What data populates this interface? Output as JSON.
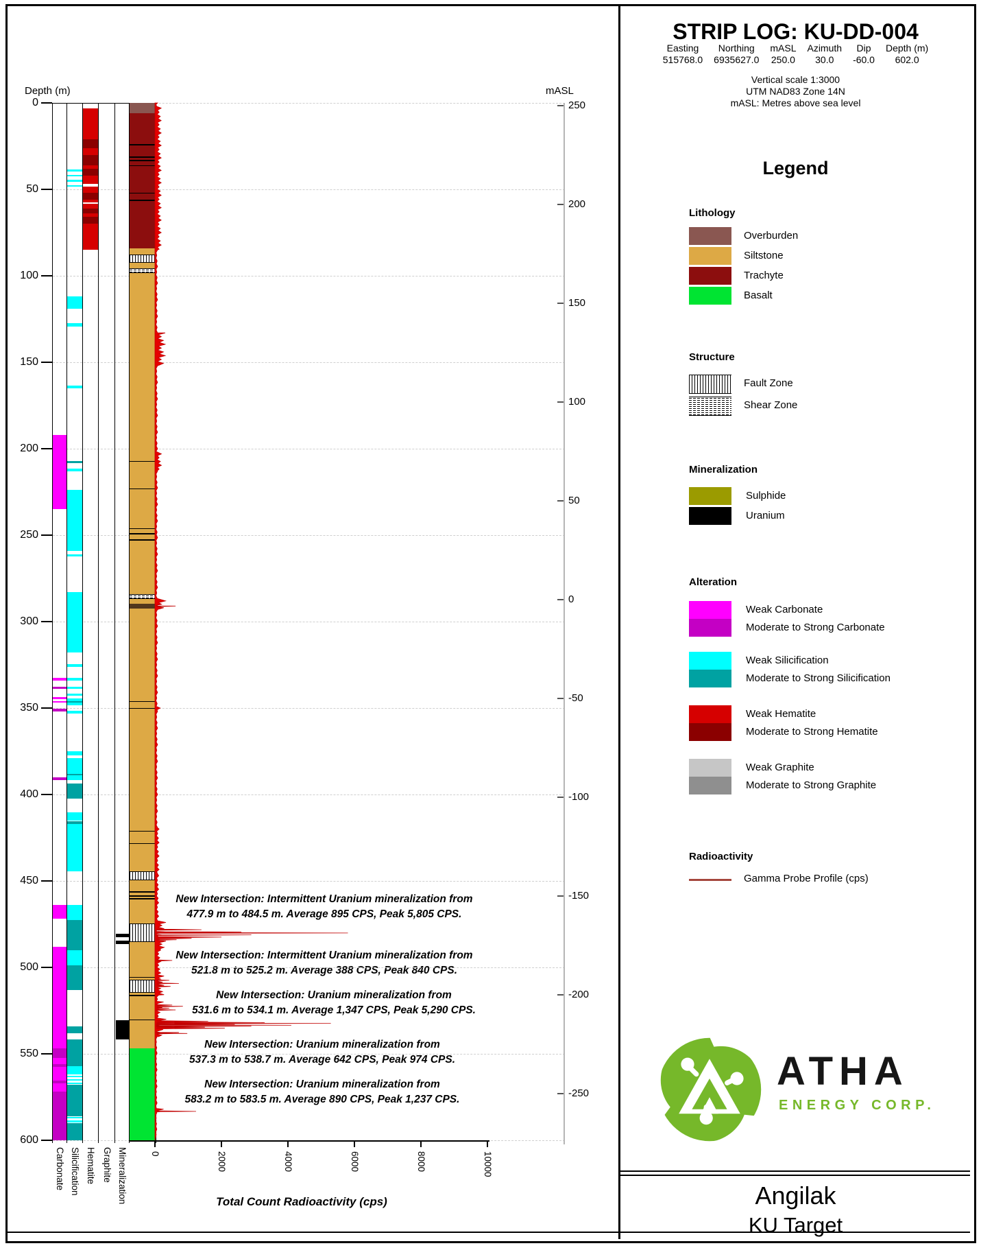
{
  "page": {
    "depth_label": "Depth (m)",
    "masl_label": "mASL"
  },
  "header": {
    "title": "STRIP LOG: KU-DD-004",
    "fields": [
      {
        "label": "Easting",
        "value": "515768.0"
      },
      {
        "label": "Northing",
        "value": "6935627.0"
      },
      {
        "label": "mASL",
        "value": "250.0"
      },
      {
        "label": "Azimuth",
        "value": "30.0"
      },
      {
        "label": "Dip",
        "value": "-60.0"
      },
      {
        "label": "Depth (m)",
        "value": "602.0"
      }
    ],
    "scale_note": "Vertical scale 1:3000",
    "datum_note": "UTM NAD83 Zone 14N",
    "masl_note": "mASL: Metres above sea level"
  },
  "palette": {
    "overburden": "#8a5751",
    "siltstone": "#dda945",
    "trachyte": "#8c0e0e",
    "basalt": "#00e432",
    "weak_carbonate": "#ff00ff",
    "strong_carbonate": "#c400c4",
    "weak_silicification": "#00ffff",
    "strong_silicification": "#00a2a2",
    "weak_hematite": "#d60000",
    "strong_hematite": "#8b0000",
    "weak_graphite": "#c6c6c6",
    "strong_graphite": "#8f8f8f",
    "sulphide": "#9b9b00",
    "uranium": "#000000",
    "gamma": "#e60000",
    "gamma_line": "#a5473d",
    "brand_green": "#76b82a",
    "dark_band": "#53381d"
  },
  "legend": {
    "title": "Legend",
    "lithology": {
      "heading": "Lithology",
      "items": [
        {
          "label": "Overburden",
          "key": "overburden"
        },
        {
          "label": "Siltstone",
          "key": "siltstone"
        },
        {
          "label": "Trachyte",
          "key": "trachyte"
        },
        {
          "label": "Basalt",
          "key": "basalt"
        }
      ]
    },
    "structure": {
      "heading": "Structure",
      "items": [
        {
          "label": "Fault Zone",
          "pattern": "fault"
        },
        {
          "label": "Shear Zone",
          "pattern": "shear"
        }
      ]
    },
    "mineralization": {
      "heading": "Mineralization",
      "items": [
        {
          "label": "Sulphide",
          "key": "sulphide"
        },
        {
          "label": "Uranium",
          "key": "uranium"
        }
      ]
    },
    "alteration": {
      "heading": "Alteration",
      "groups": [
        {
          "weak_label": "Weak Carbonate",
          "strong_label": "Moderate to Strong Carbonate",
          "weak_key": "weak_carbonate",
          "strong_key": "strong_carbonate"
        },
        {
          "weak_label": "Weak Silicification",
          "strong_label": "Moderate to Strong Silicification",
          "weak_key": "weak_silicification",
          "strong_key": "strong_silicification"
        },
        {
          "weak_label": "Weak Hematite",
          "strong_label": "Moderate to Strong Hematite",
          "weak_key": "weak_hematite",
          "strong_key": "strong_hematite"
        },
        {
          "weak_label": "Weak Graphite",
          "strong_label": "Moderate to Strong Graphite",
          "weak_key": "weak_graphite",
          "strong_key": "strong_graphite"
        }
      ]
    },
    "radioactivity": {
      "heading": "Radioactivity",
      "item": "Gamma Probe Profile (cps)"
    }
  },
  "chart_data": {
    "type": "strip-log",
    "title": "STRIP LOG: KU-DD-004",
    "depth_axis": {
      "label": "Depth (m)",
      "min": 0,
      "max": 600,
      "tick_interval": 50
    },
    "masl_axis": {
      "label": "mASL",
      "ticks": [
        250,
        200,
        150,
        100,
        50,
        0,
        -50,
        -100,
        -150,
        -200,
        -250
      ]
    },
    "radioactivity_axis": {
      "label": "Total Count Radioactivity (cps)",
      "min": 0,
      "max": 10000,
      "ticks": [
        0,
        2000,
        4000,
        6000,
        8000,
        10000
      ]
    },
    "track_labels": [
      "Carbonate",
      "Silicification",
      "Hematite",
      "Graphite",
      "Mineralization"
    ],
    "lithology_intervals": [
      {
        "unit": "Overburden",
        "key": "overburden",
        "from": 0,
        "to": 6
      },
      {
        "unit": "Trachyte",
        "key": "trachyte",
        "from": 6,
        "to": 84
      },
      {
        "unit": "Siltstone",
        "key": "siltstone",
        "from": 84,
        "to": 547
      },
      {
        "unit": "Basalt",
        "key": "basalt",
        "from": 547,
        "to": 600
      }
    ],
    "lithology_contacts": [
      24,
      31,
      33,
      36,
      52,
      56,
      207,
      223,
      246,
      249,
      252.5,
      346,
      350,
      421,
      428,
      456,
      458.5,
      460,
      505.5,
      516,
      530
    ],
    "lithology_dark_band": {
      "from": 289.5,
      "to": 292.5
    },
    "structures": [
      {
        "type": "fault",
        "from": 87.5,
        "to": 91.5
      },
      {
        "type": "shear",
        "from": 95.5,
        "to": 97.5
      },
      {
        "type": "shear",
        "from": 284,
        "to": 286
      },
      {
        "type": "fault",
        "from": 444.5,
        "to": 449
      },
      {
        "type": "fault",
        "from": 474.5,
        "to": 484.5
      },
      {
        "type": "fault",
        "from": 507,
        "to": 514
      }
    ],
    "alteration_intervals": {
      "carbonate": {
        "weak": [
          [
            192,
            235
          ],
          [
            332.5,
            334
          ],
          [
            343.5,
            345
          ],
          [
            346,
            347
          ],
          [
            464,
            472
          ],
          [
            488,
            547
          ],
          [
            552.5,
            556
          ],
          [
            557.5,
            565.5
          ],
          [
            567,
            572
          ]
        ],
        "strong": [
          [
            337.5,
            339
          ],
          [
            350.5,
            352
          ],
          [
            390,
            391.5
          ],
          [
            547,
            552.5
          ],
          [
            556,
            557.5
          ],
          [
            565.5,
            567
          ],
          [
            572,
            600
          ]
        ]
      },
      "silicification": {
        "weak": [
          [
            38.5,
            39.5
          ],
          [
            41.5,
            42.5
          ],
          [
            44.5,
            45.5
          ],
          [
            47.5,
            48.5
          ],
          [
            112,
            119
          ],
          [
            127.5,
            129.5
          ],
          [
            163.5,
            165
          ],
          [
            211.5,
            213
          ],
          [
            224,
            259
          ],
          [
            261,
            262.5
          ],
          [
            283,
            318
          ],
          [
            324.5,
            326
          ],
          [
            332.5,
            334
          ],
          [
            337.5,
            339
          ],
          [
            341.5,
            343
          ],
          [
            344.5,
            346
          ],
          [
            347,
            348.5
          ],
          [
            351.5,
            353
          ],
          [
            375,
            377.5
          ],
          [
            379,
            388
          ],
          [
            389,
            391.5
          ],
          [
            410.5,
            415
          ],
          [
            417,
            444.5
          ],
          [
            464,
            472.5
          ],
          [
            490,
            499
          ],
          [
            557,
            562
          ],
          [
            562.5,
            563.5
          ],
          [
            564.5,
            565.5
          ],
          [
            566.5,
            567.5
          ],
          [
            586.5,
            587.5
          ],
          [
            588.5,
            589.5
          ]
        ],
        "strong": [
          [
            207,
            208.5
          ],
          [
            346,
            347
          ],
          [
            388,
            389
          ],
          [
            393.5,
            402.5
          ],
          [
            415.5,
            417
          ],
          [
            472.5,
            490
          ],
          [
            499,
            513
          ],
          [
            534,
            538
          ],
          [
            541.5,
            557
          ],
          [
            568,
            586
          ],
          [
            590,
            600
          ]
        ]
      },
      "hematite": {
        "weak": [
          [
            3,
            21
          ],
          [
            26,
            30
          ],
          [
            36,
            38
          ],
          [
            42,
            47
          ],
          [
            48.5,
            52
          ],
          [
            56,
            57.5
          ],
          [
            58.5,
            61
          ],
          [
            64,
            66
          ],
          [
            70,
            85
          ]
        ],
        "strong": [
          [
            21,
            26
          ],
          [
            30,
            36
          ],
          [
            38,
            42
          ],
          [
            52,
            56
          ],
          [
            61,
            64
          ],
          [
            66,
            70
          ]
        ]
      },
      "graphite": {
        "weak": [],
        "strong": []
      }
    },
    "mineralization_intervals": [
      {
        "mineral": "uranium",
        "from": 480.5,
        "to": 482.5
      },
      {
        "mineral": "uranium",
        "from": 484.5,
        "to": 486.5
      },
      {
        "mineral": "uranium",
        "from": 530.5,
        "to": 541.5
      }
    ],
    "gamma_profile": {
      "units": "cps",
      "noise_segments": [
        [
          0,
          3,
          20,
          60,
          1
        ],
        [
          3,
          85,
          50,
          140,
          1.2
        ],
        [
          85,
          133,
          25,
          55,
          1.6
        ],
        [
          133,
          152,
          50,
          260,
          1.1
        ],
        [
          152,
          203,
          25,
          55,
          1.6
        ],
        [
          203,
          213,
          45,
          150,
          1.1
        ],
        [
          213,
          288,
          25,
          55,
          1.6
        ],
        [
          288,
          293,
          60,
          260,
          1
        ],
        [
          293,
          350,
          25,
          55,
          1.6
        ],
        [
          350,
          352,
          40,
          120,
          1
        ],
        [
          352,
          420,
          25,
          55,
          1.6
        ],
        [
          420,
          447,
          35,
          90,
          1.3
        ],
        [
          447,
          474,
          35,
          80,
          1.3
        ],
        [
          474,
          490,
          70,
          260,
          0.9
        ],
        [
          490,
          505,
          45,
          130,
          1.1
        ],
        [
          505,
          516,
          55,
          220,
          0.9
        ],
        [
          516,
          520,
          35,
          80,
          1.2
        ],
        [
          520,
          526,
          60,
          200,
          0.8
        ],
        [
          526,
          530,
          45,
          110,
          1.1
        ],
        [
          530,
          536,
          80,
          260,
          0.7
        ],
        [
          536,
          540,
          60,
          180,
          0.8
        ],
        [
          540,
          582,
          20,
          45,
          1.6
        ],
        [
          582,
          584,
          60,
          200,
          0.7
        ],
        [
          584,
          600,
          18,
          40,
          1.6
        ]
      ],
      "spikes": [
        [
          291,
          620
        ],
        [
          478.2,
          1400
        ],
        [
          479.5,
          2600
        ],
        [
          480.1,
          5805
        ],
        [
          481.2,
          2900
        ],
        [
          482.5,
          2000
        ],
        [
          483.2,
          1100
        ],
        [
          484,
          650
        ],
        [
          496,
          520
        ],
        [
          507.5,
          430
        ],
        [
          509.3,
          720
        ],
        [
          511,
          470
        ],
        [
          521.8,
          520
        ],
        [
          522.5,
          840
        ],
        [
          523.6,
          430
        ],
        [
          524.6,
          620
        ],
        [
          531.2,
          1600
        ],
        [
          531.9,
          3300
        ],
        [
          532.4,
          5290
        ],
        [
          533,
          2400
        ],
        [
          533.5,
          4100
        ],
        [
          534,
          2900
        ],
        [
          534.6,
          1500
        ],
        [
          535.2,
          2100
        ],
        [
          537.6,
          720
        ],
        [
          538.2,
          974
        ],
        [
          583.3,
          1237
        ]
      ]
    },
    "intersections": [
      {
        "from_m": 477.9,
        "to_m": 484.5,
        "avg_cps": 895,
        "peak_cps": 5805,
        "line1": "New Intersection: Intermittent Uranium mineralization from",
        "line2": "477.9 m to 484.5 m. Average 895 CPS, Peak 5,805 CPS."
      },
      {
        "from_m": 521.8,
        "to_m": 525.2,
        "avg_cps": 388,
        "peak_cps": 840,
        "line1": "New Intersection: Intermittent Uranium mineralization from",
        "line2": "521.8 m to 525.2 m. Average 388 CPS, Peak 840 CPS."
      },
      {
        "from_m": 531.6,
        "to_m": 534.1,
        "avg_cps": 1347,
        "peak_cps": 5290,
        "line1": "New Intersection: Uranium mineralization from",
        "line2": "531.6 m to 534.1 m. Average 1,347 CPS, Peak 5,290 CPS."
      },
      {
        "from_m": 537.3,
        "to_m": 538.7,
        "avg_cps": 642,
        "peak_cps": 974,
        "line1": "New Intersection: Uranium mineralization from",
        "line2": "537.3 m to 538.7 m. Average 642 CPS, Peak 974 CPS."
      },
      {
        "from_m": 583.2,
        "to_m": 583.5,
        "avg_cps": 890,
        "peak_cps": 1237,
        "line1": "New Intersection: Uranium mineralization from",
        "line2": "583.2 m to 583.5 m. Average 890 CPS, Peak 1,237 CPS."
      }
    ]
  },
  "brand": {
    "name": "ATHA",
    "subtitle": "ENERGY CORP."
  },
  "footer": {
    "project": "Angilak",
    "target": "KU Target"
  }
}
